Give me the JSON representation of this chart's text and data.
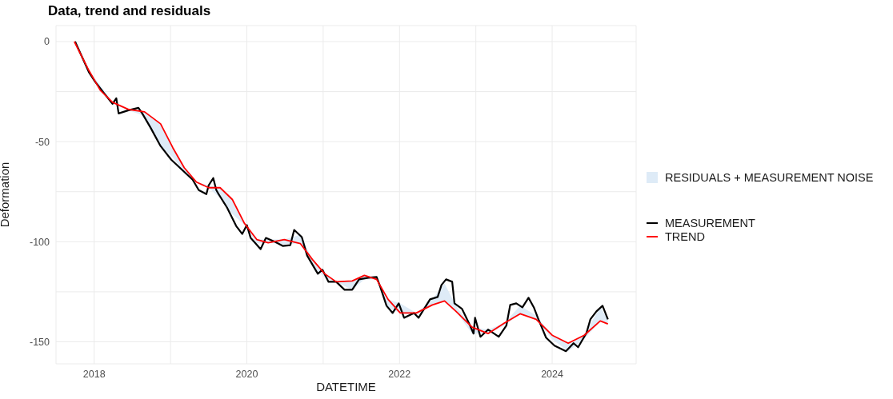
{
  "chart_data": {
    "type": "line",
    "title": "Data, trend and residuals",
    "xlabel": "DATETIME",
    "ylabel": "Deformation",
    "xlim": [
      2017.5,
      2025.1
    ],
    "xticks": [
      {
        "value": 2019,
        "label": null
      },
      {
        "value": 2021,
        "label": null
      },
      {
        "value": 2023,
        "label": null
      },
      2018,
      2020,
      2022,
      2024
    ],
    "ylim": [
      -161,
      8
    ],
    "yticks": [
      {
        "value": -25,
        "label": null
      },
      {
        "value": -75,
        "label": null
      },
      {
        "value": -125,
        "label": null
      },
      0,
      -50,
      -100,
      -150
    ],
    "grid": true,
    "legend": "right",
    "marker": "none",
    "line_style": "solid",
    "series": [
      {
        "name": "RESIDUALS + MEASUREMENT NOISE",
        "type": "area",
        "color": "#deebf7"
      },
      {
        "name": "MEASUREMENT",
        "color": "#000000",
        "x": [
          2017.75,
          2017.93,
          2018.01,
          2018.14,
          2018.24,
          2018.29,
          2018.32,
          2018.45,
          2018.58,
          2018.63,
          2018.74,
          2018.87,
          2019.01,
          2019.2,
          2019.29,
          2019.37,
          2019.47,
          2019.5,
          2019.56,
          2019.6,
          2019.63,
          2019.74,
          2019.86,
          2019.94,
          2020.0,
          2020.05,
          2020.18,
          2020.25,
          2020.37,
          2020.47,
          2020.57,
          2020.62,
          2020.72,
          2020.79,
          2020.93,
          2020.99,
          2021.07,
          2021.17,
          2021.28,
          2021.38,
          2021.47,
          2021.59,
          2021.7,
          2021.75,
          2021.83,
          2021.91,
          2021.99,
          2022.06,
          2022.19,
          2022.25,
          2022.4,
          2022.5,
          2022.55,
          2022.61,
          2022.69,
          2022.72,
          2022.82,
          2022.92,
          2022.97,
          2022.99,
          2023.06,
          2023.16,
          2023.3,
          2023.4,
          2023.45,
          2023.53,
          2023.61,
          2023.69,
          2023.76,
          2023.82,
          2023.92,
          2024.03,
          2024.18,
          2024.28,
          2024.34,
          2024.45,
          2024.5,
          2024.58,
          2024.66,
          2024.73
        ],
        "values": [
          0,
          -15.2,
          -19.9,
          -26.3,
          -31.1,
          -28.3,
          -35.9,
          -34.3,
          -33.1,
          -35.9,
          -43.1,
          -52.2,
          -59.0,
          -65.8,
          -69.0,
          -74.2,
          -76.2,
          -71.8,
          -68.2,
          -74.2,
          -76.2,
          -82.9,
          -92.1,
          -96.1,
          -91.7,
          -98.1,
          -103.7,
          -98.1,
          -100.1,
          -102.1,
          -101.7,
          -94.1,
          -97.7,
          -106.9,
          -116.0,
          -114.0,
          -120.0,
          -120.0,
          -124.0,
          -124.0,
          -118.8,
          -118.0,
          -117.6,
          -122.8,
          -132.0,
          -135.6,
          -130.8,
          -138.0,
          -135.6,
          -138.0,
          -128.8,
          -127.6,
          -121.6,
          -118.8,
          -120.0,
          -130.8,
          -133.6,
          -141.5,
          -145.9,
          -138.0,
          -147.5,
          -143.9,
          -147.5,
          -141.9,
          -131.6,
          -130.8,
          -132.8,
          -128.0,
          -132.8,
          -138.8,
          -147.9,
          -151.9,
          -154.7,
          -150.7,
          -152.7,
          -145.5,
          -138.8,
          -134.8,
          -132.0,
          -138.8
        ]
      },
      {
        "name": "TREND",
        "color": "#ff0000",
        "x": [
          2017.74,
          2017.93,
          2018.08,
          2018.24,
          2018.45,
          2018.66,
          2018.87,
          2019.03,
          2019.18,
          2019.34,
          2019.5,
          2019.65,
          2019.81,
          2019.97,
          2020.13,
          2020.28,
          2020.49,
          2020.7,
          2020.86,
          2021.02,
          2021.17,
          2021.38,
          2021.54,
          2021.7,
          2021.85,
          2022.01,
          2022.22,
          2022.43,
          2022.59,
          2022.74,
          2022.95,
          2023.16,
          2023.37,
          2023.58,
          2023.79,
          2024.0,
          2024.21,
          2024.42,
          2024.63,
          2024.73
        ],
        "values": [
          0,
          -14.4,
          -24.3,
          -30.3,
          -33.9,
          -35.1,
          -41.1,
          -53.0,
          -63.0,
          -70.2,
          -73.0,
          -73.0,
          -78.9,
          -90.9,
          -98.9,
          -100.5,
          -98.9,
          -100.9,
          -108.9,
          -116.0,
          -120.0,
          -119.6,
          -116.8,
          -118.8,
          -128.8,
          -135.6,
          -135.6,
          -131.6,
          -129.6,
          -134.8,
          -142.7,
          -145.9,
          -140.7,
          -136.0,
          -138.8,
          -146.7,
          -150.7,
          -146.7,
          -139.6,
          -141.1
        ],
        "lower": [
          0,
          -15.2,
          -24.3,
          -31.1,
          -34.3,
          -37.1,
          -52.2,
          -57.8,
          -65.4,
          -70.2,
          -73.0,
          -78.1,
          -86.1,
          -91.7,
          -100.9,
          -100.5,
          -101.3,
          -100.9,
          -112.0,
          -118.0,
          -120.0,
          -124.0,
          -118.8,
          -118.8,
          -132.8,
          -135.6,
          -136.8,
          -131.6,
          -129.6,
          -134.8,
          -145.9,
          -145.9,
          -141.9,
          -136.0,
          -138.8,
          -148.7,
          -154.7,
          -148.7,
          -139.6,
          -141.1
        ],
        "upper": [
          0,
          -14.4,
          -21.9,
          -30.3,
          -33.9,
          -35.1,
          -41.1,
          -53.0,
          -63.0,
          -70.2,
          -71.8,
          -73.0,
          -78.9,
          -90.9,
          -98.9,
          -98.9,
          -98.9,
          -96.5,
          -108.9,
          -116.0,
          -120.0,
          -119.6,
          -116.8,
          -117.6,
          -128.8,
          -130.8,
          -135.6,
          -128.8,
          -120.8,
          -132.0,
          -142.7,
          -143.9,
          -140.7,
          -132.0,
          -136.8,
          -146.7,
          -150.7,
          -146.7,
          -132.4,
          -138.8
        ]
      }
    ]
  }
}
